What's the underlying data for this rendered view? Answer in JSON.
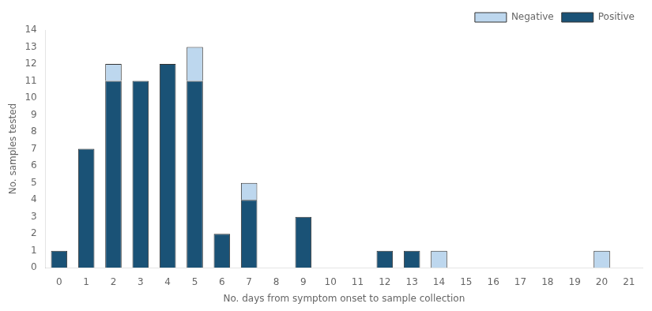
{
  "chart_data": {
    "type": "bar",
    "stacked": true,
    "categories": [
      0,
      1,
      2,
      3,
      4,
      5,
      6,
      7,
      8,
      9,
      10,
      11,
      12,
      13,
      14,
      15,
      16,
      17,
      18,
      19,
      20,
      21
    ],
    "series": [
      {
        "name": "Positive",
        "color": "#1A5276",
        "values": [
          1,
          7,
          11,
          11,
          12,
          11,
          2,
          4,
          0,
          3,
          0,
          0,
          1,
          1,
          0,
          0,
          0,
          0,
          0,
          0,
          0,
          0
        ]
      },
      {
        "name": "Negative",
        "color": "#BDD7EE",
        "values": [
          0,
          0,
          1,
          0,
          0,
          2,
          0,
          1,
          0,
          0,
          0,
          0,
          0,
          0,
          1,
          0,
          0,
          0,
          0,
          0,
          1,
          0
        ]
      }
    ],
    "xlabel": "No. days from symptom onset to sample collection",
    "ylabel": "No. samples tested",
    "ylim": [
      0,
      14
    ],
    "yticks": [
      0,
      1,
      2,
      3,
      4,
      5,
      6,
      7,
      8,
      9,
      10,
      11,
      12,
      13,
      14
    ],
    "grid": false,
    "legend": "upper right"
  }
}
